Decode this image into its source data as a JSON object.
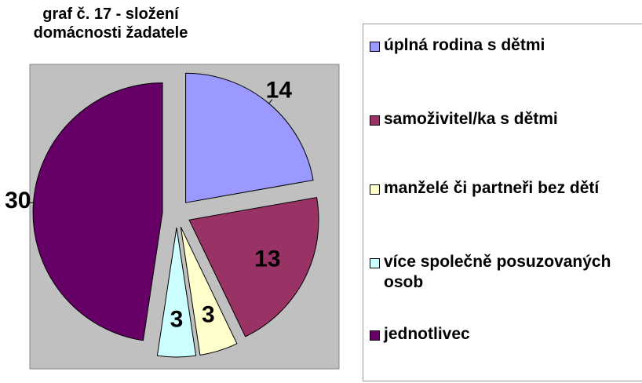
{
  "chart_data": {
    "type": "pie",
    "title": "graf č. 17 - složení domácnosti žadatele",
    "categories": [
      "úplná rodina s dětmi",
      "samoživitel/ka s dětmi",
      "manželé či partneři bez dětí",
      "více společně posuzovaných osob",
      "jednotlivec"
    ],
    "values": [
      14,
      13,
      3,
      3,
      30
    ],
    "colors": [
      "#9999ff",
      "#993366",
      "#ffffcc",
      "#ccffff",
      "#660066"
    ],
    "legend": "right"
  }
}
